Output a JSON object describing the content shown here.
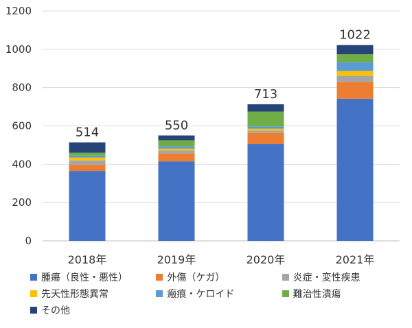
{
  "chart_data": {
    "type": "bar",
    "stacked": true,
    "categories": [
      "2018年",
      "2019年",
      "2020年",
      "2021年"
    ],
    "totals": [
      514,
      550,
      713,
      1022
    ],
    "ylim": [
      0,
      1200
    ],
    "yticks": [
      0,
      200,
      400,
      600,
      800,
      1000,
      1200
    ],
    "grid": true,
    "legend_position": "bottom",
    "series": [
      {
        "name": "腫瘍（良性・悪性）",
        "color": "#4472C4",
        "values": [
          365,
          415,
          505,
          742
        ]
      },
      {
        "name": "外傷（ケガ）",
        "color": "#ED7D31",
        "values": [
          32,
          40,
          58,
          88
        ]
      },
      {
        "name": "炎症・変性疾患",
        "color": "#A5A5A5",
        "values": [
          23,
          16,
          12,
          32
        ]
      },
      {
        "name": "先天性形態異常",
        "color": "#FFC000",
        "values": [
          15,
          10,
          10,
          25
        ]
      },
      {
        "name": "瘢痕・ケロイド",
        "color": "#5B9BD5",
        "values": [
          10,
          12,
          12,
          45
        ]
      },
      {
        "name": "難治性潰瘍",
        "color": "#70AD47",
        "values": [
          15,
          32,
          78,
          42
        ]
      },
      {
        "name": "その他",
        "color": "#264478",
        "values": [
          54,
          25,
          38,
          48
        ]
      }
    ]
  }
}
